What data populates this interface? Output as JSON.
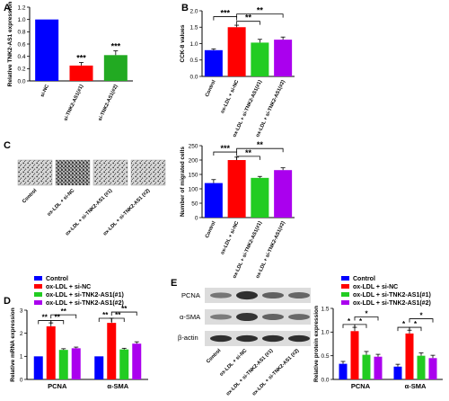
{
  "panels": {
    "A": {
      "letter": "A",
      "type": "bar",
      "ylabel": "Relative TNK2-AS1 expression",
      "ylim": [
        0,
        1.2
      ],
      "ticks": [
        0.0,
        0.2,
        0.4,
        0.6,
        0.8,
        1.0,
        1.2
      ],
      "tick_labels": [
        "0.0",
        "0.2",
        "0.4",
        "0.6",
        "0.8",
        "1.0",
        "1.2"
      ],
      "categories": [
        "si-NC",
        "si-TNK2-AS1(#1)",
        "si-TNK2-AS1(#2)"
      ],
      "values": [
        1.0,
        0.25,
        0.42
      ],
      "errors": [
        0.0,
        0.05,
        0.07
      ],
      "colors": [
        "#0000ff",
        "#ff0000",
        "#22aa22"
      ],
      "annotations": [
        "",
        "***",
        "***"
      ]
    },
    "B": {
      "letter": "B",
      "type": "bar",
      "ylabel": "CCK-8 values",
      "ylim": [
        0,
        2.0
      ],
      "ticks": [
        0.0,
        0.5,
        1.0,
        1.5,
        2.0
      ],
      "tick_labels": [
        "0.0",
        "0.5",
        "1.0",
        "1.5",
        "2.0"
      ],
      "categories": [
        "Control",
        "ox-LDL + si-NC",
        "ox-LDL + si-TNK2-AS1(#1)",
        "ox-LDL + si-TNK2-AS1(#2)"
      ],
      "values": [
        0.8,
        1.5,
        1.03,
        1.12
      ],
      "errors": [
        0.04,
        0.06,
        0.1,
        0.08
      ],
      "colors": [
        "#0000ff",
        "#ff0000",
        "#22cc22",
        "#aa00ee"
      ],
      "brackets": [
        {
          "from": 0,
          "to": 1,
          "label": "***",
          "level": 1.82
        },
        {
          "from": 1,
          "to": 2,
          "label": "**",
          "level": 1.68
        },
        {
          "from": 1,
          "to": 3,
          "label": "**",
          "level": 1.9
        }
      ]
    },
    "C": {
      "letter": "C",
      "images": [
        "Control",
        "ox-LDL + si-NC",
        "ox-LDL + si-TNK2-AS1 (#1)",
        "ox-LDL + si-TNK2-AS1 (#2)"
      ],
      "type": "bar",
      "ylabel": "Number of migrated cells",
      "ylim": [
        0,
        250
      ],
      "ticks": [
        0,
        50,
        100,
        150,
        200,
        250
      ],
      "tick_labels": [
        "0",
        "50",
        "100",
        "150",
        "200",
        "250"
      ],
      "categories": [
        "Control",
        "ox-LDL + si-NC",
        "ox-LDL + si-TNK2-AS1(#1)",
        "ox-LDL + si-TNK2-AS1(#2)"
      ],
      "values": [
        120,
        200,
        138,
        165
      ],
      "errors": [
        12,
        10,
        5,
        8
      ],
      "colors": [
        "#0000ff",
        "#ff0000",
        "#22cc22",
        "#aa00ee"
      ],
      "brackets": [
        {
          "from": 0,
          "to": 1,
          "label": "***",
          "level": 228
        },
        {
          "from": 1,
          "to": 2,
          "label": "**",
          "level": 213
        },
        {
          "from": 1,
          "to": 3,
          "label": "**",
          "level": 240
        }
      ]
    },
    "D": {
      "letter": "D",
      "type": "bar",
      "ylabel": "Relative mRNA expression",
      "ylim": [
        0,
        3
      ],
      "ticks": [
        0,
        1,
        2,
        3
      ],
      "tick_labels": [
        "0",
        "1",
        "2",
        "3"
      ],
      "categories": [
        "PCNA",
        "α-SMA"
      ],
      "series": [
        {
          "name": "Control",
          "color": "#0000ff",
          "values": [
            1.0,
            1.0
          ],
          "errors": [
            0,
            0
          ]
        },
        {
          "name": "ox-LDL + si-NC",
          "color": "#ff0000",
          "values": [
            2.3,
            2.45
          ],
          "errors": [
            0.15,
            0.2
          ]
        },
        {
          "name": "ox-LDL + si-TNK2-AS1(#1)",
          "color": "#22cc22",
          "values": [
            1.28,
            1.3
          ],
          "errors": [
            0.05,
            0.05
          ]
        },
        {
          "name": "ox-LDL + si-TNK2-AS1(#2)",
          "color": "#aa00ee",
          "values": [
            1.35,
            1.55
          ],
          "errors": [
            0.05,
            0.08
          ]
        }
      ],
      "brackets": [
        {
          "group": 0,
          "from": 0,
          "to": 1,
          "label": "**",
          "level": 2.55
        },
        {
          "group": 0,
          "from": 1,
          "to": 2,
          "label": "**",
          "level": 2.55
        },
        {
          "group": 0,
          "from": 1,
          "to": 3,
          "label": "**",
          "level": 2.8
        },
        {
          "group": 1,
          "from": 0,
          "to": 1,
          "label": "**",
          "level": 2.65
        },
        {
          "group": 1,
          "from": 1,
          "to": 2,
          "label": "**",
          "level": 2.65
        },
        {
          "group": 1,
          "from": 1,
          "to": 3,
          "label": "**",
          "level": 2.92
        }
      ]
    },
    "E": {
      "letter": "E",
      "blot_labels": [
        "PCNA",
        "α-SMA",
        "β-actin"
      ],
      "lanes": [
        "Control",
        "ox-LDL + si-NC",
        "ox-LDL + si-TNK2-AS1 (#1)",
        "ox-LDL + si-TNK2-AS1 (#2)"
      ],
      "type": "bar",
      "ylabel": "Relative protein expression",
      "ylim": [
        0,
        1.5
      ],
      "ticks": [
        0.0,
        0.5,
        1.0,
        1.5
      ],
      "tick_labels": [
        "0.0",
        "0.5",
        "1.0",
        "1.5"
      ],
      "categories": [
        "PCNA",
        "α-SMA"
      ],
      "series": [
        {
          "name": "Control",
          "color": "#0000ff",
          "values": [
            0.33,
            0.27
          ],
          "errors": [
            0.05,
            0.05
          ]
        },
        {
          "name": "ox-LDL + si-NC",
          "color": "#ff0000",
          "values": [
            1.02,
            0.97
          ],
          "errors": [
            0.08,
            0.07
          ]
        },
        {
          "name": "ox-LDL + si-TNK2-AS1(#1)",
          "color": "#22cc22",
          "values": [
            0.52,
            0.5
          ],
          "errors": [
            0.07,
            0.06
          ]
        },
        {
          "name": "ox-LDL + si-TNK2-AS1(#2)",
          "color": "#aa00ee",
          "values": [
            0.48,
            0.45
          ],
          "errors": [
            0.05,
            0.06
          ]
        }
      ],
      "brackets": [
        {
          "group": 0,
          "from": 0,
          "to": 1,
          "label": "*",
          "level": 1.16
        },
        {
          "group": 0,
          "from": 1,
          "to": 2,
          "label": "*",
          "level": 1.16
        },
        {
          "group": 0,
          "from": 1,
          "to": 3,
          "label": "*",
          "level": 1.32
        },
        {
          "group": 1,
          "from": 0,
          "to": 1,
          "label": "*",
          "level": 1.1
        },
        {
          "group": 1,
          "from": 1,
          "to": 2,
          "label": "*",
          "level": 1.1
        },
        {
          "group": 1,
          "from": 1,
          "to": 3,
          "label": "*",
          "level": 1.28
        }
      ]
    }
  },
  "legend": [
    "Control",
    "ox-LDL + si-NC",
    "ox-LDL + si-TNK2-AS1(#1)",
    "ox-LDL + si-TNK2-AS1(#2)"
  ],
  "chart_data": [
    {
      "panel": "A",
      "type": "bar",
      "ylabel": "Relative TNK2-AS1 expression",
      "ylim": [
        0,
        1.2
      ],
      "categories": [
        "si-NC",
        "si-TNK2-AS1(#1)",
        "si-TNK2-AS1(#2)"
      ],
      "values": [
        1.0,
        0.25,
        0.42
      ]
    },
    {
      "panel": "B",
      "type": "bar",
      "ylabel": "CCK-8 values",
      "ylim": [
        0,
        2.0
      ],
      "categories": [
        "Control",
        "ox-LDL + si-NC",
        "ox-LDL + si-TNK2-AS1(#1)",
        "ox-LDL + si-TNK2-AS1(#2)"
      ],
      "values": [
        0.8,
        1.5,
        1.03,
        1.12
      ]
    },
    {
      "panel": "C",
      "type": "bar",
      "ylabel": "Number of migrated cells",
      "ylim": [
        0,
        250
      ],
      "categories": [
        "Control",
        "ox-LDL + si-NC",
        "ox-LDL + si-TNK2-AS1(#1)",
        "ox-LDL + si-TNK2-AS1(#2)"
      ],
      "values": [
        120,
        200,
        138,
        165
      ]
    },
    {
      "panel": "D",
      "type": "bar",
      "ylabel": "Relative mRNA expression",
      "ylim": [
        0,
        3
      ],
      "categories": [
        "PCNA",
        "α-SMA"
      ],
      "series": [
        {
          "name": "Control",
          "values": [
            1.0,
            1.0
          ]
        },
        {
          "name": "ox-LDL + si-NC",
          "values": [
            2.3,
            2.45
          ]
        },
        {
          "name": "ox-LDL + si-TNK2-AS1(#1)",
          "values": [
            1.28,
            1.3
          ]
        },
        {
          "name": "ox-LDL + si-TNK2-AS1(#2)",
          "values": [
            1.35,
            1.55
          ]
        }
      ]
    },
    {
      "panel": "E",
      "type": "bar",
      "ylabel": "Relative protein expression",
      "ylim": [
        0,
        1.5
      ],
      "categories": [
        "PCNA",
        "α-SMA"
      ],
      "series": [
        {
          "name": "Control",
          "values": [
            0.33,
            0.27
          ]
        },
        {
          "name": "ox-LDL + si-NC",
          "values": [
            1.02,
            0.97
          ]
        },
        {
          "name": "ox-LDL + si-TNK2-AS1(#1)",
          "values": [
            0.52,
            0.5
          ]
        },
        {
          "name": "ox-LDL + si-TNK2-AS1(#2)",
          "values": [
            0.48,
            0.45
          ]
        }
      ]
    }
  ]
}
